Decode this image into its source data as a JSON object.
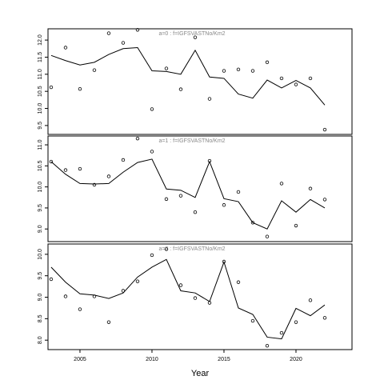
{
  "chart_data": [
    {
      "type": "line",
      "annotation": "a=0 : f=IGFSVASTNo/Km2",
      "x": [
        2003,
        2004,
        2005,
        2006,
        2007,
        2008,
        2009,
        2010,
        2011,
        2012,
        2013,
        2014,
        2015,
        2016,
        2017,
        2018,
        2019,
        2020,
        2021,
        2022
      ],
      "xlim": [
        2002.78,
        2023.89
      ],
      "ylim": [
        9.24,
        12.33
      ],
      "yticks": [
        9.5,
        {
          "value": 10,
          "label": "10.0"
        },
        10.5,
        {
          "value": 11,
          "label": "11.0"
        },
        11.5,
        {
          "value": 12,
          "label": "12.0"
        }
      ],
      "series": [
        {
          "style": "line",
          "color": "#000000",
          "values": [
            11.55,
            11.4,
            11.27,
            11.35,
            11.58,
            11.75,
            11.78,
            11.1,
            11.08,
            11.0,
            11.7,
            10.92,
            10.88,
            10.42,
            10.3,
            10.83,
            10.6,
            10.82,
            10.6,
            10.1
          ]
        },
        {
          "style": "points",
          "color": "#000000",
          "values": [
            10.62,
            11.78,
            10.57,
            11.12,
            12.2,
            11.92,
            12.3,
            9.98,
            11.17,
            10.56,
            12.08,
            10.28,
            11.1,
            11.14,
            11.1,
            11.35,
            10.88,
            10.7,
            10.88,
            9.38
          ]
        }
      ]
    },
    {
      "type": "line",
      "annotation": "a=1 : f=IGFSVASTNo/Km2",
      "x": [
        2003,
        2004,
        2005,
        2006,
        2007,
        2008,
        2009,
        2010,
        2011,
        2012,
        2013,
        2014,
        2015,
        2016,
        2017,
        2018,
        2019,
        2020,
        2021,
        2022
      ],
      "xlim": [
        2002.78,
        2023.89
      ],
      "ylim": [
        8.7,
        11.21
      ],
      "yticks": [
        {
          "value": 9,
          "label": "9.0"
        },
        9.5,
        {
          "value": 10,
          "label": "10.0"
        },
        10.5,
        {
          "value": 11,
          "label": "11.0"
        }
      ],
      "series": [
        {
          "style": "line",
          "color": "#000000",
          "values": [
            10.6,
            10.3,
            10.08,
            10.07,
            10.08,
            10.35,
            10.58,
            10.66,
            9.95,
            9.92,
            9.75,
            10.6,
            9.72,
            9.65,
            9.15,
            9.0,
            9.67,
            9.4,
            9.7,
            9.5
          ]
        },
        {
          "style": "points",
          "color": "#000000",
          "values": [
            10.6,
            10.4,
            10.43,
            10.05,
            10.25,
            10.64,
            11.15,
            10.84,
            9.71,
            9.79,
            9.4,
            10.62,
            9.57,
            9.88,
            9.15,
            8.82,
            10.08,
            9.08,
            9.96,
            9.7
          ]
        }
      ]
    },
    {
      "type": "line",
      "annotation": "a=2 : f=IGFSVASTNo/Km2",
      "x": [
        2003,
        2004,
        2005,
        2006,
        2007,
        2008,
        2009,
        2010,
        2011,
        2012,
        2013,
        2014,
        2015,
        2016,
        2017,
        2018,
        2019,
        2020,
        2021,
        2022
      ],
      "xlim": [
        2002.78,
        2023.89
      ],
      "ylim": [
        7.78,
        10.24
      ],
      "xticks": [
        2005,
        2010,
        2015,
        2020
      ],
      "xlabel": "Year",
      "yticks": [
        {
          "value": 8,
          "label": "8.0"
        },
        8.5,
        {
          "value": 9,
          "label": "9.0"
        },
        9.5,
        {
          "value": 10,
          "label": "10.0"
        }
      ],
      "series": [
        {
          "style": "line",
          "color": "#000000",
          "values": [
            9.7,
            9.35,
            9.08,
            9.05,
            8.97,
            9.1,
            9.47,
            9.7,
            9.88,
            9.15,
            9.1,
            8.9,
            9.82,
            8.75,
            8.6,
            8.07,
            8.03,
            8.74,
            8.57,
            8.82
          ]
        },
        {
          "style": "points",
          "color": "#000000",
          "values": [
            9.42,
            9.02,
            8.72,
            9.02,
            8.42,
            9.15,
            9.37,
            9.98,
            10.12,
            9.28,
            8.98,
            8.87,
            9.83,
            9.35,
            8.45,
            7.87,
            8.17,
            8.42,
            8.93,
            8.52
          ]
        }
      ]
    }
  ]
}
